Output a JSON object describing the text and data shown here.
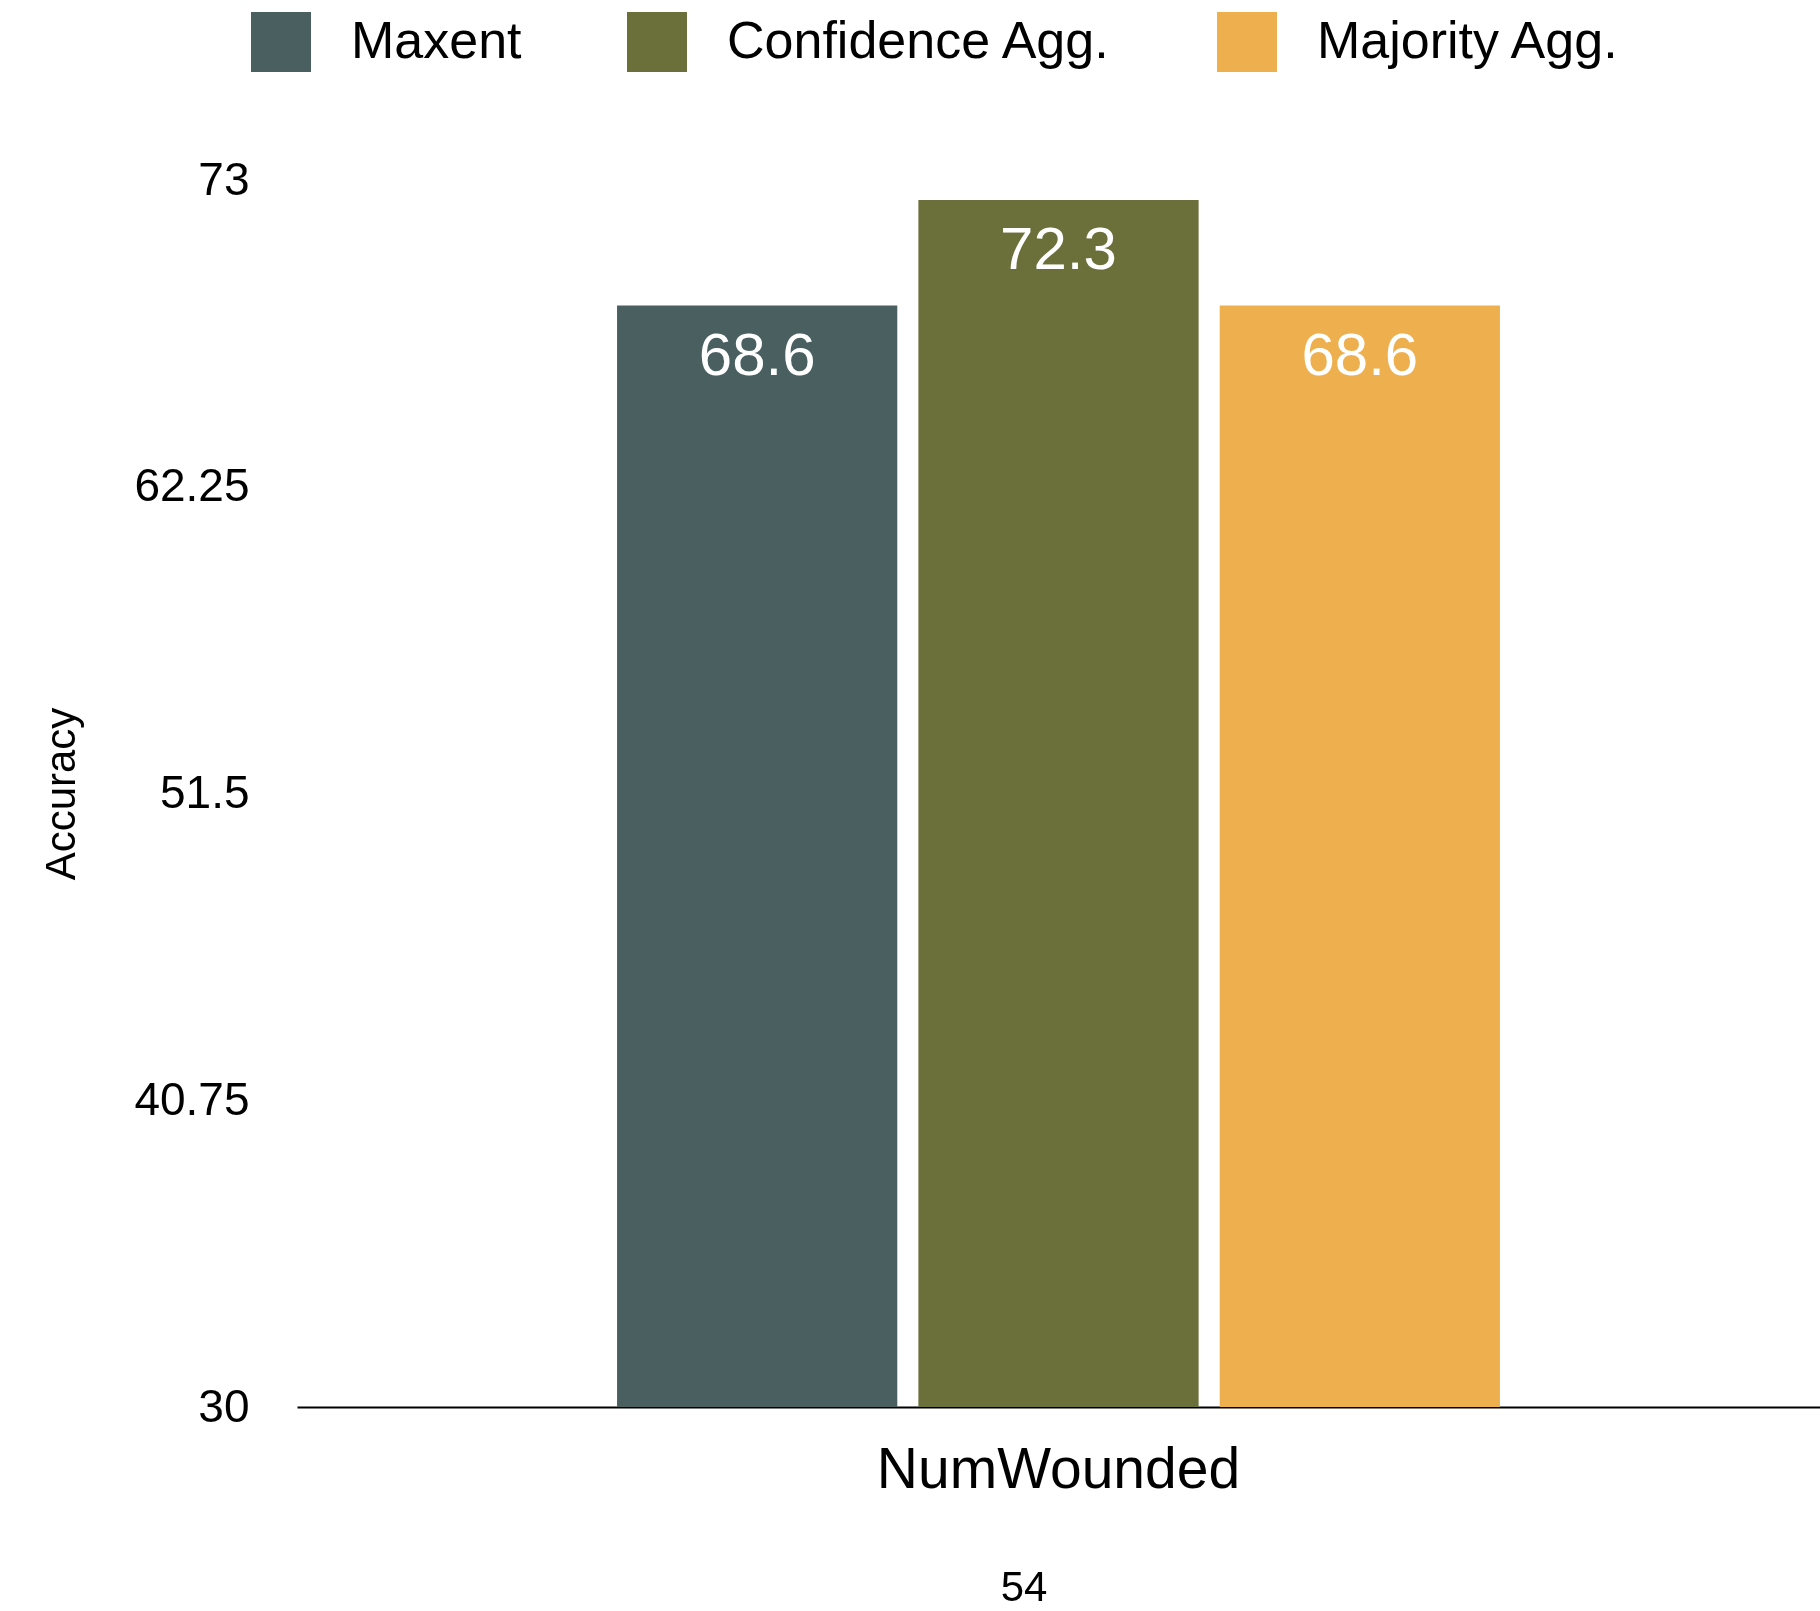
{
  "chart_data": {
    "type": "bar",
    "ylabel": "Accuracy",
    "categories": [
      "NumWounded"
    ],
    "series": [
      {
        "name": "Maxent",
        "color": "#4a5f60",
        "values": [
          68.6
        ]
      },
      {
        "name": "Confidence Agg.",
        "color": "#6b703a",
        "values": [
          72.3
        ]
      },
      {
        "name": "Majority Agg.",
        "color": "#eeb04f",
        "values": [
          68.6
        ]
      }
    ],
    "ylim": [
      30,
      73
    ],
    "yticks": [
      30,
      40.75,
      51.5,
      62.25,
      73
    ],
    "grid": false,
    "legend": "top",
    "data_labels": true,
    "annotations": [
      "54"
    ]
  }
}
